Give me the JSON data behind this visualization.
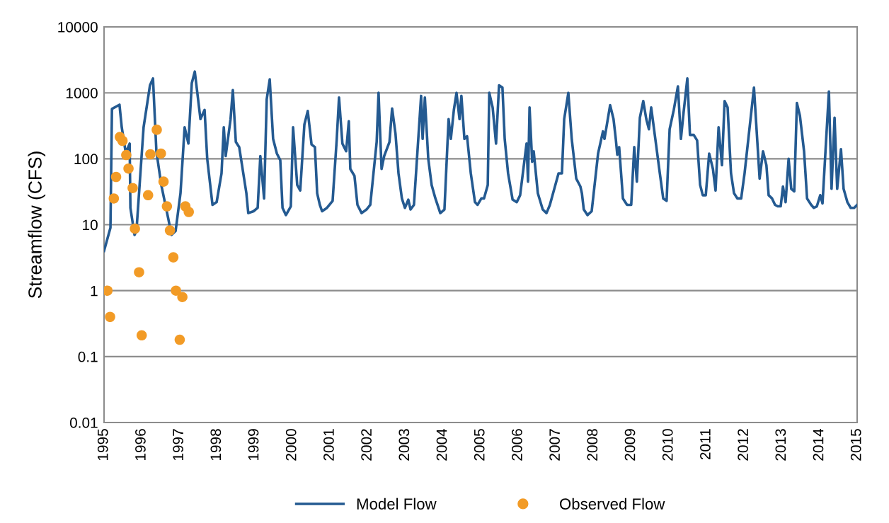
{
  "chart_data": {
    "type": "line",
    "ylabel": "Streamflow (CFS)",
    "log": "y",
    "xlim": [
      1995,
      2015
    ],
    "xticks": [
      1995,
      1996,
      1997,
      1998,
      1999,
      2000,
      2001,
      2002,
      2003,
      2004,
      2005,
      2006,
      2007,
      2008,
      2009,
      2010,
      2011,
      2012,
      2013,
      2014,
      2015
    ],
    "ylim": [
      0.01,
      10000
    ],
    "yticks": [
      0.01,
      0.1,
      1,
      10,
      100,
      1000,
      10000
    ],
    "grid": "y",
    "legend": "bottom",
    "series": [
      {
        "name": "Model Flow",
        "color": "#245a91",
        "marker": "none",
        "line_style": "solid",
        "x": [
          1995.0,
          1995.17,
          1995.21,
          1995.41,
          1995.47,
          1995.58,
          1995.62,
          1995.68,
          1995.7,
          1995.81,
          1995.86,
          1996.05,
          1996.22,
          1996.3,
          1996.39,
          1996.52,
          1996.71,
          1996.79,
          1996.9,
          1997.03,
          1997.14,
          1997.24,
          1997.33,
          1997.41,
          1997.56,
          1997.67,
          1997.74,
          1997.88,
          1997.99,
          1998.12,
          1998.18,
          1998.23,
          1998.36,
          1998.42,
          1998.5,
          1998.59,
          1998.78,
          1998.83,
          1998.97,
          1999.08,
          1999.15,
          1999.25,
          1999.32,
          1999.4,
          1999.49,
          1999.59,
          1999.68,
          1999.74,
          1999.83,
          1999.96,
          2000.02,
          2000.13,
          2000.21,
          2000.32,
          2000.41,
          2000.51,
          2000.6,
          2000.66,
          2000.73,
          2000.79,
          2000.92,
          2001.07,
          2001.18,
          2001.24,
          2001.33,
          2001.43,
          2001.5,
          2001.54,
          2001.65,
          2001.73,
          2001.84,
          2001.97,
          2002.07,
          2002.24,
          2002.29,
          2002.37,
          2002.44,
          2002.58,
          2002.65,
          2002.74,
          2002.82,
          2002.91,
          2002.99,
          2003.08,
          2003.14,
          2003.23,
          2003.42,
          2003.46,
          2003.52,
          2003.61,
          2003.7,
          2003.8,
          2003.93,
          2004.04,
          2004.15,
          2004.21,
          2004.29,
          2004.36,
          2004.44,
          2004.49,
          2004.57,
          2004.64,
          2004.74,
          2004.85,
          2004.92,
          2005.02,
          2005.09,
          2005.19,
          2005.23,
          2005.32,
          2005.41,
          2005.49,
          2005.58,
          2005.64,
          2005.73,
          2005.85,
          2005.96,
          2006.05,
          2006.22,
          2006.26,
          2006.3,
          2006.37,
          2006.41,
          2006.52,
          2006.65,
          2006.75,
          2006.84,
          2007.07,
          2007.16,
          2007.22,
          2007.33,
          2007.42,
          2007.54,
          2007.65,
          2007.69,
          2007.74,
          2007.84,
          2007.95,
          2008.12,
          2008.25,
          2008.29,
          2008.44,
          2008.53,
          2008.59,
          2008.63,
          2008.68,
          2008.78,
          2008.89,
          2009.0,
          2009.08,
          2009.15,
          2009.23,
          2009.32,
          2009.4,
          2009.47,
          2009.53,
          2009.64,
          2009.76,
          2009.85,
          2009.94,
          2010.02,
          2010.13,
          2010.24,
          2010.32,
          2010.39,
          2010.49,
          2010.56,
          2010.66,
          2010.75,
          2010.83,
          2010.9,
          2010.98,
          2011.07,
          2011.17,
          2011.24,
          2011.32,
          2011.41,
          2011.48,
          2011.56,
          2011.65,
          2011.73,
          2011.82,
          2011.92,
          2012.01,
          2012.26,
          2012.41,
          2012.5,
          2012.59,
          2012.65,
          2012.74,
          2012.82,
          2012.89,
          2012.97,
          2013.03,
          2013.1,
          2013.18,
          2013.25,
          2013.33,
          2013.4,
          2013.48,
          2013.59,
          2013.67,
          2013.78,
          2013.85,
          2013.93,
          2014.02,
          2014.08,
          2014.25,
          2014.32,
          2014.4,
          2014.47,
          2014.57,
          2014.64,
          2014.74,
          2014.83,
          2014.92,
          2015.0
        ],
        "values": [
          4,
          9,
          570,
          660,
          300,
          120,
          140,
          170,
          18,
          7,
          8,
          300,
          1300,
          1650,
          130,
          40,
          12,
          7,
          8,
          30,
          300,
          170,
          1400,
          2100,
          400,
          550,
          100,
          20,
          22,
          60,
          300,
          110,
          400,
          1100,
          180,
          150,
          30,
          15,
          16,
          18,
          110,
          25,
          800,
          1600,
          200,
          120,
          95,
          18,
          14,
          19,
          300,
          40,
          33,
          330,
          530,
          165,
          150,
          30,
          20,
          16,
          18,
          23,
          200,
          850,
          170,
          130,
          370,
          70,
          55,
          20,
          15,
          17,
          20,
          180,
          1000,
          70,
          110,
          180,
          580,
          240,
          60,
          25,
          18,
          24,
          17,
          20,
          900,
          200,
          850,
          100,
          40,
          25,
          15,
          17,
          400,
          200,
          550,
          1000,
          400,
          900,
          200,
          220,
          60,
          22,
          20,
          25,
          25,
          40,
          1000,
          600,
          170,
          1300,
          1200,
          200,
          60,
          24,
          22,
          28,
          170,
          45,
          600,
          90,
          130,
          30,
          17,
          15,
          20,
          60,
          60,
          400,
          1000,
          200,
          50,
          38,
          30,
          17,
          14,
          16,
          120,
          260,
          200,
          650,
          400,
          200,
          115,
          150,
          25,
          20,
          20,
          150,
          45,
          420,
          750,
          400,
          280,
          600,
          200,
          60,
          25,
          23,
          280,
          550,
          1250,
          200,
          500,
          1650,
          230,
          230,
          190,
          40,
          28,
          28,
          120,
          70,
          33,
          300,
          80,
          750,
          600,
          60,
          30,
          25,
          25,
          60,
          1200,
          50,
          130,
          80,
          28,
          25,
          20,
          19,
          19,
          38,
          22,
          100,
          35,
          32,
          700,
          450,
          130,
          25,
          20,
          18,
          19,
          28,
          21,
          1050,
          35,
          420,
          35,
          140,
          35,
          22,
          18,
          18,
          20
        ]
      },
      {
        "name": "Observed Flow",
        "type": "scatter",
        "color": "#f29b26",
        "marker": "circle",
        "x": [
          1995.09,
          1995.16,
          1995.26,
          1995.32,
          1995.42,
          1995.49,
          1995.59,
          1995.65,
          1995.76,
          1995.82,
          1995.93,
          1996.0,
          1996.17,
          1996.23,
          1996.4,
          1996.51,
          1996.58,
          1996.67,
          1996.75,
          1996.84,
          1996.91,
          1997.01,
          1997.08,
          1997.16,
          1997.25
        ],
        "values": [
          1,
          0.4,
          25,
          53,
          214,
          187,
          114,
          71,
          36,
          8.7,
          1.9,
          0.21,
          28,
          117,
          275,
          120,
          45,
          19,
          8.2,
          3.2,
          1,
          0.18,
          0.8,
          19,
          15.6
        ]
      }
    ]
  }
}
